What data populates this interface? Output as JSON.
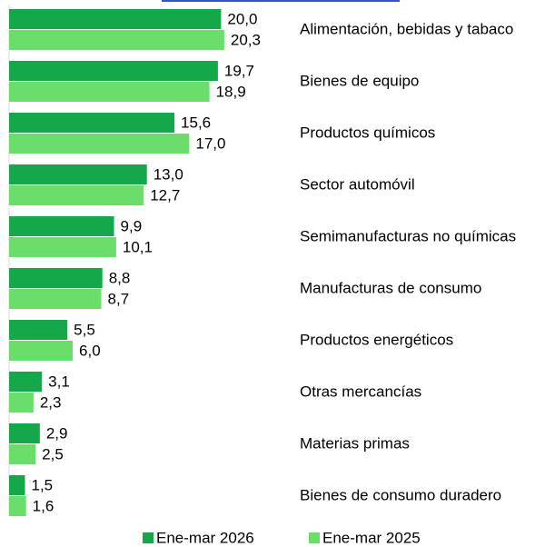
{
  "chart_data": {
    "type": "bar",
    "orientation": "horizontal",
    "categories": [
      "Alimentación, bebidas y tabaco",
      "Bienes de equipo",
      "Productos químicos",
      "Sector automóvil",
      "Semimanufacturas no químicas",
      "Manufacturas de consumo",
      "Productos energéticos",
      "Otras mercancías",
      "Materias primas",
      "Bienes de consumo duradero"
    ],
    "series": [
      {
        "name": "Ene-mar 2026",
        "color": "#14a84b",
        "values": [
          20.0,
          19.7,
          15.6,
          13.0,
          9.9,
          8.8,
          5.5,
          3.1,
          2.9,
          1.5
        ],
        "value_labels": [
          "20,0",
          "19,7",
          "15,6",
          "13,0",
          "9,9",
          "8,8",
          "5,5",
          "3,1",
          "2,9",
          "1,5"
        ]
      },
      {
        "name": "Ene-mar 2025",
        "color": "#6add6a",
        "values": [
          20.3,
          18.9,
          17.0,
          12.7,
          10.1,
          8.7,
          6.0,
          2.3,
          2.5,
          1.6
        ],
        "value_labels": [
          "20,3",
          "18,9",
          "17,0",
          "12,7",
          "10,1",
          "8,7",
          "6,0",
          "2,3",
          "2,5",
          "1,6"
        ]
      }
    ],
    "legend": "bottom"
  }
}
